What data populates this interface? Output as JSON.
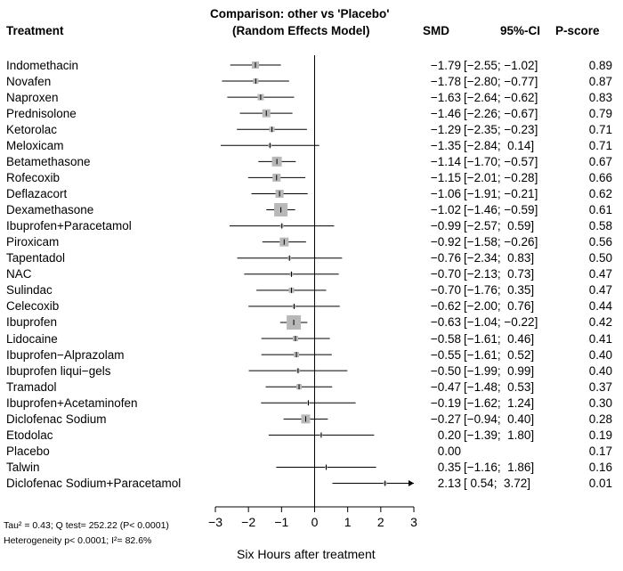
{
  "header": {
    "treatment": "Treatment",
    "title_line1": "Comparison: other vs 'Placebo'",
    "title_line2": "(Random Effects Model)",
    "smd": "SMD",
    "ci": "95%-CI",
    "pscore": "P-score"
  },
  "footer": {
    "line1": "Tau² = 0.43; Q test= 252.22 (P< 0.0001)",
    "line2": "Heterogeneity p< 0.0001; I²= 82.6%"
  },
  "chart_data": {
    "type": "forest",
    "title": "Comparison: other vs 'Placebo' (Random Effects Model)",
    "xlabel": "Six Hours after treatment",
    "xlim": [
      -3,
      3
    ],
    "xticks": [
      "−3",
      "−2",
      "−1",
      "0",
      "1",
      "2",
      "3"
    ],
    "reference_line": 0,
    "rows": [
      {
        "name": "Indomethacin",
        "smd": -1.79,
        "lo": -2.55,
        "hi": -1.02,
        "smd_text": "−1.79",
        "ci_text": "[−2.55; −1.02]",
        "pscore": "0.89"
      },
      {
        "name": "Novafen",
        "smd": -1.78,
        "lo": -2.8,
        "hi": -0.77,
        "smd_text": "−1.78",
        "ci_text": "[−2.80; −0.77]",
        "pscore": "0.87"
      },
      {
        "name": "Naproxen",
        "smd": -1.63,
        "lo": -2.64,
        "hi": -0.62,
        "smd_text": "−1.63",
        "ci_text": "[−2.64; −0.62]",
        "pscore": "0.83"
      },
      {
        "name": "Prednisolone",
        "smd": -1.46,
        "lo": -2.26,
        "hi": -0.67,
        "smd_text": "−1.46",
        "ci_text": "[−2.26; −0.67]",
        "pscore": "0.79"
      },
      {
        "name": "Ketorolac",
        "smd": -1.29,
        "lo": -2.35,
        "hi": -0.23,
        "smd_text": "−1.29",
        "ci_text": "[−2.35; −0.23]",
        "pscore": "0.71"
      },
      {
        "name": "Meloxicam",
        "smd": -1.35,
        "lo": -2.84,
        "hi": 0.14,
        "smd_text": "−1.35",
        "ci_text": "[−2.84;  0.14]",
        "pscore": "0.71"
      },
      {
        "name": "Betamethasone",
        "smd": -1.14,
        "lo": -1.7,
        "hi": -0.57,
        "smd_text": "−1.14",
        "ci_text": "[−1.70; −0.57]",
        "pscore": "0.67"
      },
      {
        "name": "Rofecoxib",
        "smd": -1.15,
        "lo": -2.01,
        "hi": -0.28,
        "smd_text": "−1.15",
        "ci_text": "[−2.01; −0.28]",
        "pscore": "0.66"
      },
      {
        "name": "Deflazacort",
        "smd": -1.06,
        "lo": -1.91,
        "hi": -0.21,
        "smd_text": "−1.06",
        "ci_text": "[−1.91; −0.21]",
        "pscore": "0.62"
      },
      {
        "name": "Dexamethasone",
        "smd": -1.02,
        "lo": -1.46,
        "hi": -0.59,
        "smd_text": "−1.02",
        "ci_text": "[−1.46; −0.59]",
        "pscore": "0.61"
      },
      {
        "name": "Ibuprofen+Paracetamol",
        "smd": -0.99,
        "lo": -2.57,
        "hi": 0.59,
        "smd_text": "−0.99",
        "ci_text": "[−2.57;  0.59]",
        "pscore": "0.58"
      },
      {
        "name": "Piroxicam",
        "smd": -0.92,
        "lo": -1.58,
        "hi": -0.26,
        "smd_text": "−0.92",
        "ci_text": "[−1.58; −0.26]",
        "pscore": "0.56"
      },
      {
        "name": "Tapentadol",
        "smd": -0.76,
        "lo": -2.34,
        "hi": 0.83,
        "smd_text": "−0.76",
        "ci_text": "[−2.34;  0.83]",
        "pscore": "0.50"
      },
      {
        "name": "NAC",
        "smd": -0.7,
        "lo": -2.13,
        "hi": 0.73,
        "smd_text": "−0.70",
        "ci_text": "[−2.13;  0.73]",
        "pscore": "0.47"
      },
      {
        "name": "Sulindac",
        "smd": -0.7,
        "lo": -1.76,
        "hi": 0.35,
        "smd_text": "−0.70",
        "ci_text": "[−1.76;  0.35]",
        "pscore": "0.47"
      },
      {
        "name": "Celecoxib",
        "smd": -0.62,
        "lo": -2.0,
        "hi": 0.76,
        "smd_text": "−0.62",
        "ci_text": "[−2.00;  0.76]",
        "pscore": "0.44"
      },
      {
        "name": "Ibuprofen",
        "smd": -0.63,
        "lo": -1.04,
        "hi": -0.22,
        "smd_text": "−0.63",
        "ci_text": "[−1.04; −0.22]",
        "pscore": "0.42"
      },
      {
        "name": "Lidocaine",
        "smd": -0.58,
        "lo": -1.61,
        "hi": 0.46,
        "smd_text": "−0.58",
        "ci_text": "[−1.61;  0.46]",
        "pscore": "0.41"
      },
      {
        "name": "Ibuprofen−Alprazolam",
        "smd": -0.55,
        "lo": -1.61,
        "hi": 0.52,
        "smd_text": "−0.55",
        "ci_text": "[−1.61;  0.52]",
        "pscore": "0.40"
      },
      {
        "name": "Ibuprofen liqui−gels",
        "smd": -0.5,
        "lo": -1.99,
        "hi": 0.99,
        "smd_text": "−0.50",
        "ci_text": "[−1.99;  0.99]",
        "pscore": "0.40"
      },
      {
        "name": "Tramadol",
        "smd": -0.47,
        "lo": -1.48,
        "hi": 0.53,
        "smd_text": "−0.47",
        "ci_text": "[−1.48;  0.53]",
        "pscore": "0.37"
      },
      {
        "name": "Ibuprofen+Acetaminofen",
        "smd": -0.19,
        "lo": -1.62,
        "hi": 1.24,
        "smd_text": "−0.19",
        "ci_text": "[−1.62;  1.24]",
        "pscore": "0.30"
      },
      {
        "name": "Diclofenac Sodium",
        "smd": -0.27,
        "lo": -0.94,
        "hi": 0.4,
        "smd_text": "−0.27",
        "ci_text": "[−0.94;  0.40]",
        "pscore": "0.28"
      },
      {
        "name": "Etodolac",
        "smd": 0.2,
        "lo": -1.39,
        "hi": 1.8,
        "smd_text": "0.20",
        "ci_text": "[−1.39;  1.80]",
        "pscore": "0.19"
      },
      {
        "name": "Placebo",
        "smd": 0.0,
        "lo": null,
        "hi": null,
        "smd_text": "0.00",
        "ci_text": "",
        "pscore": "0.17"
      },
      {
        "name": "Talwin",
        "smd": 0.35,
        "lo": -1.16,
        "hi": 1.86,
        "smd_text": "0.35",
        "ci_text": "[−1.16;  1.86]",
        "pscore": "0.16"
      },
      {
        "name": "Diclofenac Sodium+Paracetamol",
        "smd": 2.13,
        "lo": 0.54,
        "hi": 3.72,
        "smd_text": "2.13",
        "ci_text": "[ 0.54;  3.72]",
        "pscore": "0.01"
      }
    ]
  }
}
